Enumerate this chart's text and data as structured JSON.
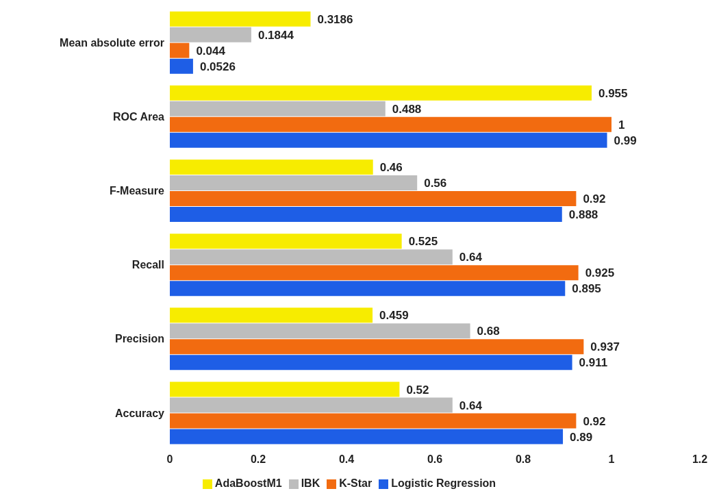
{
  "chart_data": {
    "type": "bar",
    "orientation": "horizontal",
    "categories": [
      "Mean absolute error",
      "ROC Area",
      "F-Measure",
      "Recall",
      "Precision",
      "Accuracy"
    ],
    "series": [
      {
        "name": "AdaBoostM1",
        "color": "#f7ec00",
        "values": [
          0.3186,
          0.955,
          0.46,
          0.525,
          0.459,
          0.52
        ]
      },
      {
        "name": "IBK",
        "color": "#bdbdbd",
        "values": [
          0.1844,
          0.488,
          0.56,
          0.64,
          0.68,
          0.64
        ]
      },
      {
        "name": "K-Star",
        "color": "#f26b10",
        "values": [
          0.044,
          1,
          0.92,
          0.925,
          0.937,
          0.92
        ]
      },
      {
        "name": "Logistic Regression",
        "color": "#1e5ee6",
        "values": [
          0.0526,
          0.99,
          0.888,
          0.895,
          0.911,
          0.89
        ]
      }
    ],
    "xlim": [
      0,
      1.2
    ],
    "xticks": [
      0,
      0.2,
      0.4,
      0.6,
      0.8,
      1,
      1.2
    ],
    "data_labels": true,
    "legend": "bottom",
    "grid": false
  }
}
